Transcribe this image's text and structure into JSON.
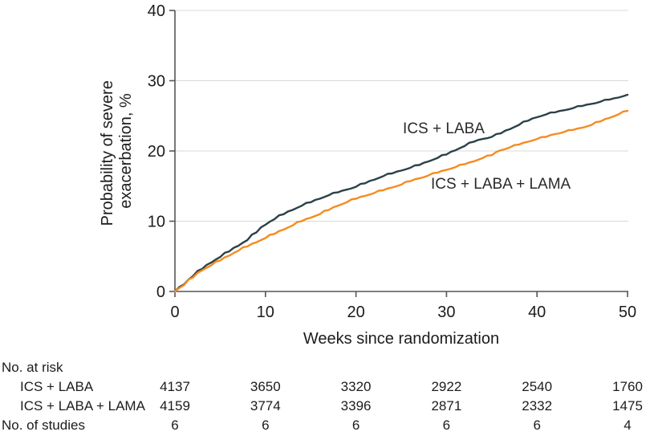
{
  "figure": {
    "background": "#ffffff",
    "text_color": "#1c1c1c",
    "axis_color": "#555555",
    "grid_color": "#d9d9d9"
  },
  "chart_data": {
    "type": "line",
    "title": "",
    "xlabel": "Weeks since randomization",
    "ylabel_line1": "Probability of severe",
    "ylabel_line2": "exacerbation, %",
    "xlim": [
      0,
      50
    ],
    "ylim": [
      0,
      40
    ],
    "x_ticks": [
      0,
      10,
      20,
      30,
      40,
      50
    ],
    "y_ticks": [
      0,
      10,
      20,
      30,
      40
    ],
    "grid": "horizontal",
    "legend_position": "inline-labels",
    "series": [
      {
        "name": "ICS + LABA",
        "color": "#2c4147",
        "label_at": {
          "week": 29.7,
          "pct": 23.2
        },
        "x": [
          0,
          1,
          2,
          3,
          4,
          5,
          6,
          7,
          8,
          9,
          10,
          11,
          12,
          13,
          14,
          15,
          16,
          17,
          18,
          19,
          20,
          21,
          22,
          23,
          24,
          25,
          26,
          27,
          28,
          29,
          30,
          31,
          32,
          33,
          34,
          35,
          36,
          37,
          38,
          39,
          40,
          41,
          42,
          43,
          44,
          45,
          46,
          47,
          48,
          49,
          50
        ],
        "y": [
          0,
          1.0,
          2.2,
          3.2,
          4.1,
          4.9,
          5.7,
          6.5,
          7.3,
          8.4,
          9.5,
          10.3,
          11.0,
          11.6,
          12.2,
          12.7,
          13.2,
          13.7,
          14.1,
          14.5,
          14.9,
          15.4,
          15.9,
          16.4,
          16.8,
          17.2,
          17.6,
          18.0,
          18.5,
          19.0,
          19.5,
          20.1,
          20.7,
          21.3,
          21.7,
          22.0,
          22.5,
          23.1,
          23.7,
          24.3,
          24.8,
          25.2,
          25.5,
          25.8,
          26.1,
          26.4,
          26.7,
          27.0,
          27.3,
          27.6,
          28.0
        ]
      },
      {
        "name": "ICS + LABA + LAMA",
        "color": "#f68b1f",
        "label_at": {
          "week": 36.0,
          "pct": 15.3
        },
        "x": [
          0,
          1,
          2,
          3,
          4,
          5,
          6,
          7,
          8,
          9,
          10,
          11,
          12,
          13,
          14,
          15,
          16,
          17,
          18,
          19,
          20,
          21,
          22,
          23,
          24,
          25,
          26,
          27,
          28,
          29,
          30,
          31,
          32,
          33,
          34,
          35,
          36,
          37,
          38,
          39,
          40,
          41,
          42,
          43,
          44,
          45,
          46,
          47,
          48,
          49,
          50
        ],
        "y": [
          0,
          0.9,
          2.0,
          3.0,
          3.7,
          4.4,
          5.1,
          5.8,
          6.4,
          7.0,
          7.6,
          8.2,
          8.8,
          9.4,
          10.0,
          10.5,
          11.0,
          11.6,
          12.2,
          12.7,
          13.2,
          13.6,
          14.0,
          14.4,
          14.8,
          15.2,
          15.7,
          16.1,
          16.5,
          16.9,
          17.3,
          17.7,
          18.1,
          18.5,
          19.0,
          19.4,
          20.1,
          20.5,
          20.9,
          21.3,
          21.7,
          22.0,
          22.4,
          22.7,
          23.0,
          23.3,
          23.7,
          24.2,
          24.7,
          25.2,
          25.7
        ]
      }
    ]
  },
  "risk_table": {
    "title": "No. at risk",
    "weeks": [
      0,
      10,
      20,
      30,
      40,
      50
    ],
    "rows": [
      {
        "label": "ICS + LABA",
        "values": [
          "4137",
          "3650",
          "3320",
          "2922",
          "2540",
          "1760"
        ]
      },
      {
        "label": "ICS + LABA + LAMA",
        "values": [
          "4159",
          "3774",
          "3396",
          "2871",
          "2332",
          "1475"
        ]
      }
    ],
    "studies_row": {
      "label": "No. of studies",
      "values": [
        "6",
        "6",
        "6",
        "6",
        "6",
        "4"
      ]
    }
  }
}
